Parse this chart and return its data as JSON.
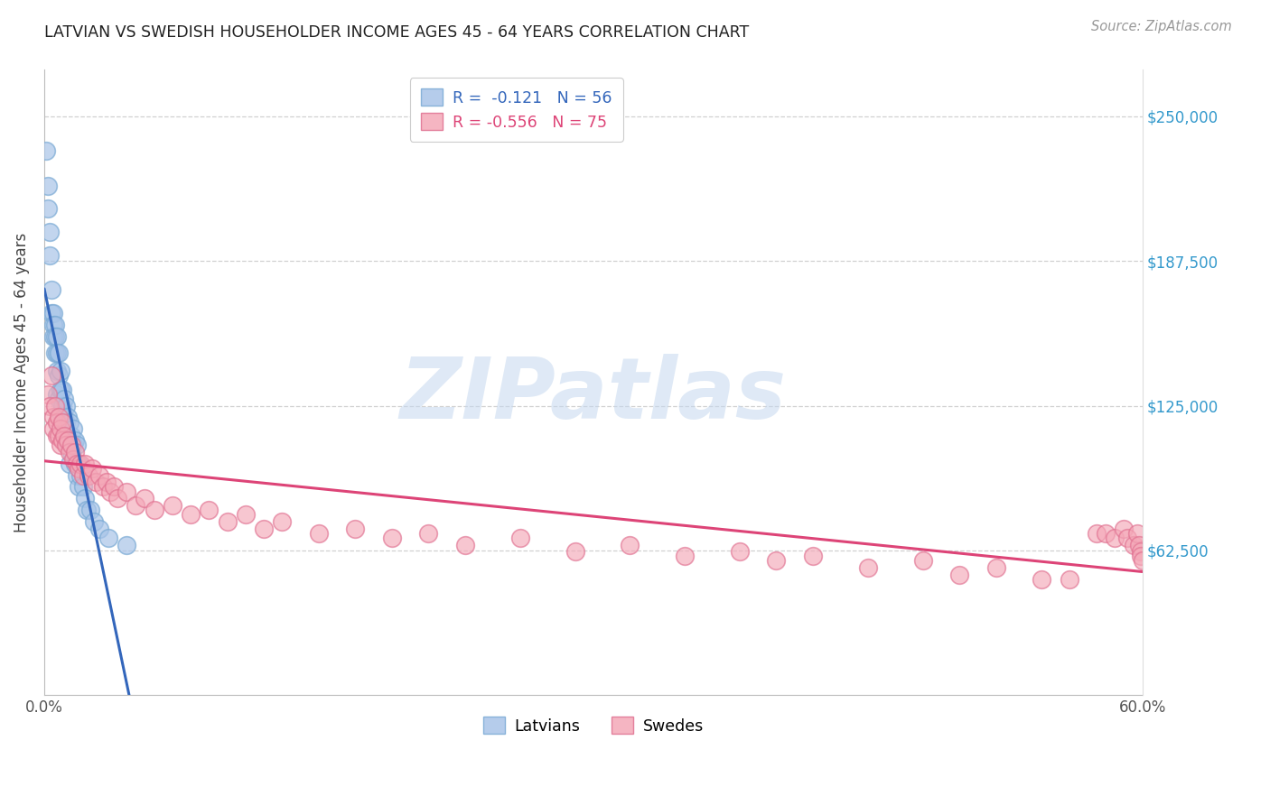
{
  "title": "LATVIAN VS SWEDISH HOUSEHOLDER INCOME AGES 45 - 64 YEARS CORRELATION CHART",
  "source": "Source: ZipAtlas.com",
  "ylabel": "Householder Income Ages 45 - 64 years",
  "xlim": [
    0.0,
    0.6
  ],
  "ylim": [
    0,
    270000
  ],
  "yticks": [
    62500,
    125000,
    187500,
    250000
  ],
  "ytick_labels": [
    "$62,500",
    "$125,000",
    "$187,500",
    "$250,000"
  ],
  "xtick_positions": [
    0.0,
    0.1,
    0.2,
    0.3,
    0.4,
    0.5,
    0.6
  ],
  "xtick_labels": [
    "0.0%",
    "",
    "",
    "",
    "",
    "",
    "60.0%"
  ],
  "latvian_color": "#a8c4e8",
  "latvian_edge_color": "#7aaad4",
  "swedish_color": "#f4a8b8",
  "swedish_edge_color": "#e07090",
  "latvian_line_color": "#3366bb",
  "swedish_line_color": "#dd4477",
  "dashed_line_color": "#99bbdd",
  "legend_R_latvian": "-0.121",
  "legend_N_latvian": "56",
  "legend_R_swedish": "-0.556",
  "legend_N_swedish": "75",
  "background_color": "#ffffff",
  "grid_color": "#cccccc",
  "watermark_text": "ZIPatlas",
  "watermark_color": "#c5d8ef",
  "title_color": "#222222",
  "source_color": "#999999",
  "ylabel_color": "#444444",
  "ytick_color": "#3399cc",
  "latvian_x": [
    0.001,
    0.002,
    0.002,
    0.003,
    0.003,
    0.004,
    0.004,
    0.005,
    0.005,
    0.005,
    0.006,
    0.006,
    0.006,
    0.007,
    0.007,
    0.007,
    0.007,
    0.008,
    0.008,
    0.008,
    0.009,
    0.009,
    0.009,
    0.01,
    0.01,
    0.01,
    0.011,
    0.011,
    0.011,
    0.012,
    0.012,
    0.012,
    0.013,
    0.013,
    0.014,
    0.014,
    0.014,
    0.015,
    0.015,
    0.016,
    0.016,
    0.017,
    0.017,
    0.018,
    0.018,
    0.019,
    0.019,
    0.02,
    0.021,
    0.022,
    0.023,
    0.025,
    0.027,
    0.03,
    0.035,
    0.045
  ],
  "latvian_y": [
    235000,
    220000,
    210000,
    200000,
    190000,
    175000,
    165000,
    165000,
    160000,
    155000,
    160000,
    155000,
    148000,
    155000,
    148000,
    140000,
    130000,
    148000,
    138000,
    128000,
    140000,
    132000,
    122000,
    132000,
    125000,
    118000,
    128000,
    120000,
    112000,
    125000,
    118000,
    110000,
    120000,
    112000,
    118000,
    110000,
    100000,
    112000,
    105000,
    115000,
    108000,
    110000,
    100000,
    108000,
    95000,
    100000,
    90000,
    95000,
    90000,
    85000,
    80000,
    80000,
    75000,
    72000,
    68000,
    65000
  ],
  "swedish_x": [
    0.002,
    0.003,
    0.004,
    0.005,
    0.005,
    0.006,
    0.007,
    0.007,
    0.008,
    0.008,
    0.009,
    0.009,
    0.01,
    0.01,
    0.011,
    0.012,
    0.013,
    0.014,
    0.015,
    0.016,
    0.017,
    0.018,
    0.019,
    0.02,
    0.021,
    0.022,
    0.024,
    0.026,
    0.028,
    0.03,
    0.032,
    0.034,
    0.036,
    0.038,
    0.04,
    0.045,
    0.05,
    0.055,
    0.06,
    0.07,
    0.08,
    0.09,
    0.1,
    0.11,
    0.12,
    0.13,
    0.15,
    0.17,
    0.19,
    0.21,
    0.23,
    0.26,
    0.29,
    0.32,
    0.35,
    0.38,
    0.4,
    0.42,
    0.45,
    0.48,
    0.5,
    0.52,
    0.545,
    0.56,
    0.575,
    0.58,
    0.585,
    0.59,
    0.592,
    0.595,
    0.597,
    0.598,
    0.599,
    0.599,
    0.6
  ],
  "swedish_y": [
    130000,
    125000,
    138000,
    120000,
    115000,
    125000,
    118000,
    112000,
    120000,
    112000,
    115000,
    108000,
    118000,
    110000,
    112000,
    108000,
    110000,
    105000,
    108000,
    102000,
    105000,
    100000,
    98000,
    100000,
    95000,
    100000,
    95000,
    98000,
    92000,
    95000,
    90000,
    92000,
    88000,
    90000,
    85000,
    88000,
    82000,
    85000,
    80000,
    82000,
    78000,
    80000,
    75000,
    78000,
    72000,
    75000,
    70000,
    72000,
    68000,
    70000,
    65000,
    68000,
    62000,
    65000,
    60000,
    62000,
    58000,
    60000,
    55000,
    58000,
    52000,
    55000,
    50000,
    50000,
    70000,
    70000,
    68000,
    72000,
    68000,
    65000,
    70000,
    65000,
    62000,
    60000,
    58000
  ]
}
